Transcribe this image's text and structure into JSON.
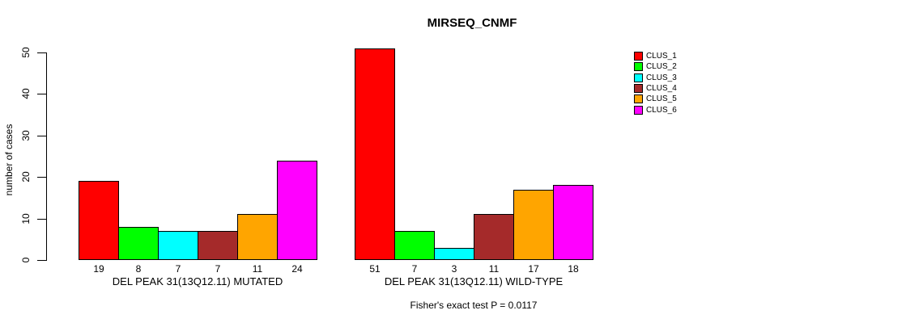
{
  "page": {
    "background": "#FFFFFF"
  },
  "chart_data": {
    "type": "bar",
    "title": "MIRSEQ_CNMF",
    "ylabel": "number of cases",
    "ylim": [
      0,
      50
    ],
    "yticks": [
      0,
      10,
      20,
      30,
      40,
      50
    ],
    "grid": false,
    "legend_position": "right",
    "bar_border_color": "#000000",
    "categories": [
      "DEL PEAK 31(13Q12.11) MUTATED",
      "DEL PEAK 31(13Q12.11) WILD-TYPE"
    ],
    "series": [
      {
        "name": "CLUS_1",
        "color": "#FF0000",
        "values": [
          19,
          51
        ]
      },
      {
        "name": "CLUS_2",
        "color": "#00FF00",
        "values": [
          8,
          7
        ]
      },
      {
        "name": "CLUS_3",
        "color": "#00FFFF",
        "values": [
          7,
          3
        ]
      },
      {
        "name": "CLUS_4",
        "color": "#A52A2A",
        "values": [
          7,
          11
        ]
      },
      {
        "name": "CLUS_5",
        "color": "#FFA500",
        "values": [
          11,
          17
        ]
      },
      {
        "name": "CLUS_6",
        "color": "#FF00FF",
        "values": [
          24,
          18
        ]
      }
    ],
    "annotation": "Fisher's exact test P = 0.0117"
  }
}
